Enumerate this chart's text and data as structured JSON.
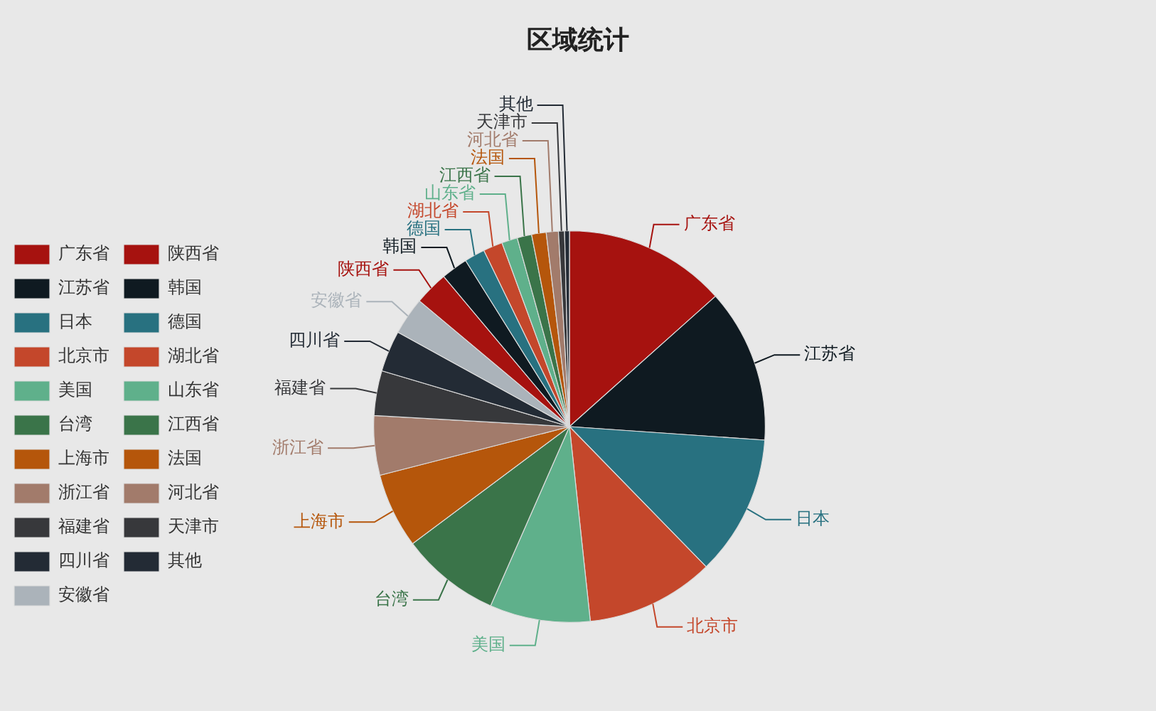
{
  "chart_data": {
    "type": "pie",
    "title": "区域统计",
    "categories": [
      "广东省",
      "江苏省",
      "日本",
      "北京市",
      "美国",
      "台湾",
      "上海市",
      "浙江省",
      "福建省",
      "四川省",
      "安徽省",
      "陕西省",
      "韩国",
      "德国",
      "湖北省",
      "山东省",
      "江西省",
      "法国",
      "河北省",
      "天津市",
      "其他"
    ],
    "values": [
      13.4,
      12.7,
      11.6,
      10.6,
      8.3,
      8.2,
      6.2,
      4.9,
      3.7,
      3.4,
      3.1,
      2.8,
      2.2,
      1.7,
      1.6,
      1.3,
      1.2,
      1.2,
      1.0,
      0.5,
      0.4
    ],
    "colors": [
      "#a6120f",
      "#0f1a21",
      "#287180",
      "#c4472b",
      "#5fb08b",
      "#3a7449",
      "#b5560b",
      "#a27b6b",
      "#37383b",
      "#232b35",
      "#abb3ba",
      "#a6120f",
      "#0f1a21",
      "#287180",
      "#c4472b",
      "#5fb08b",
      "#3a7449",
      "#b5560b",
      "#a27b6b",
      "#37383b",
      "#232b35"
    ],
    "legend": "left"
  }
}
